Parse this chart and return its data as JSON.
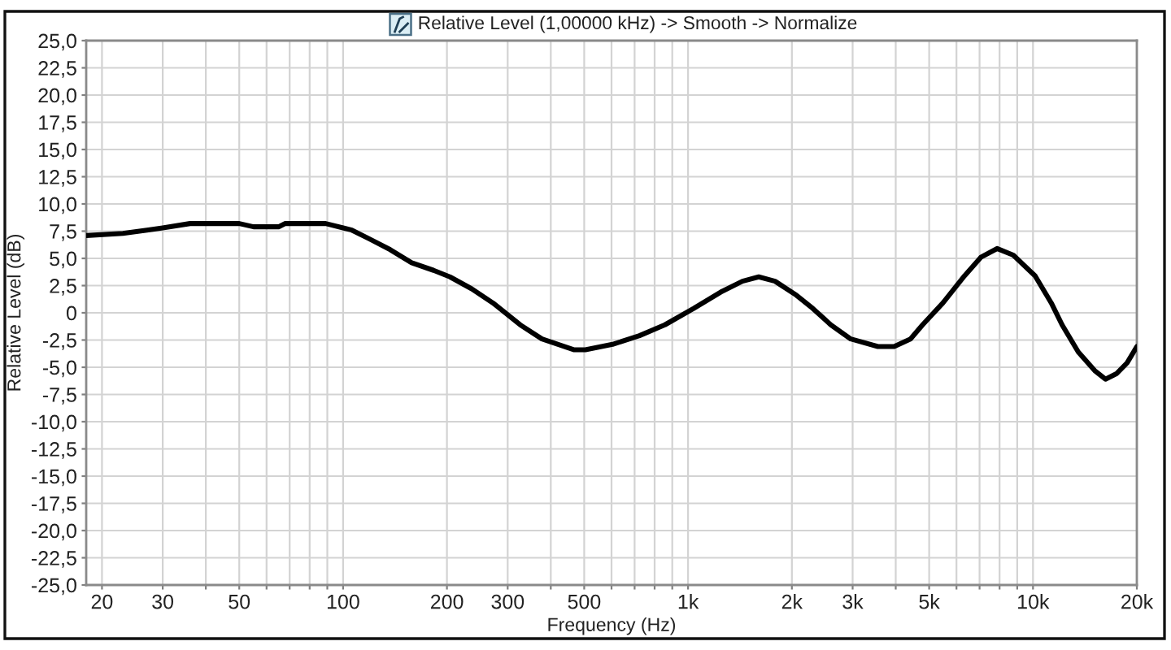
{
  "chart_data": {
    "type": "line",
    "title": "Relative Level (1,00000 kHz) -> Smooth -> Normalize",
    "xlabel": "Frequency (Hz)",
    "ylabel": "Relative Level (dB)",
    "x": [
      18,
      23,
      27,
      30,
      36,
      50,
      55,
      65,
      68,
      89,
      100,
      106,
      119,
      137,
      158,
      183,
      204,
      236,
      272,
      326,
      377,
      468,
      504,
      604,
      723,
      857,
      1038,
      1243,
      1438,
      1603,
      1787,
      2064,
      2300,
      2592,
      2962,
      3551,
      3958,
      4413,
      4786,
      5480,
      6332,
      7058,
      7866,
      8767,
      10140,
      11300,
      12140,
      13530,
      15090,
      16220,
      17440,
      18740,
      20000
    ],
    "series": [
      {
        "color": "#000000",
        "values": [
          7.1,
          7.3,
          7.6,
          7.8,
          8.2,
          8.2,
          7.9,
          7.9,
          8.2,
          8.2,
          7.8,
          7.6,
          6.8,
          5.8,
          4.6,
          3.9,
          3.3,
          2.2,
          0.9,
          -1.1,
          -2.4,
          -3.4,
          -3.4,
          -2.9,
          -2.1,
          -1.1,
          0.4,
          1.9,
          2.9,
          3.3,
          2.9,
          1.6,
          0.4,
          -1.1,
          -2.4,
          -3.1,
          -3.1,
          -2.4,
          -1.1,
          0.9,
          3.4,
          5.1,
          5.9,
          5.3,
          3.4,
          0.9,
          -1.1,
          -3.6,
          -5.3,
          -6.1,
          -5.6,
          -4.6,
          -3.1
        ]
      }
    ],
    "log": "x",
    "xlim": [
      18,
      20000
    ],
    "ylim": [
      -25,
      25
    ],
    "xticks": [
      20,
      30,
      {
        "value": 40,
        "label": null
      },
      50,
      {
        "value": 60,
        "label": null
      },
      {
        "value": 70,
        "label": null
      },
      {
        "value": 80,
        "label": null
      },
      {
        "value": 90,
        "label": null
      },
      100,
      200,
      300,
      {
        "value": 400,
        "label": null
      },
      500,
      {
        "value": 600,
        "label": null
      },
      {
        "value": 700,
        "label": null
      },
      {
        "value": 800,
        "label": null
      },
      {
        "value": 900,
        "label": null
      },
      {
        "value": 1000,
        "label": "1k"
      },
      {
        "value": 2000,
        "label": "2k"
      },
      {
        "value": 3000,
        "label": "3k"
      },
      {
        "value": 4000,
        "label": null
      },
      {
        "value": 5000,
        "label": "5k"
      },
      {
        "value": 6000,
        "label": null
      },
      {
        "value": 7000,
        "label": null
      },
      {
        "value": 8000,
        "label": null
      },
      {
        "value": 9000,
        "label": null
      },
      {
        "value": 10000,
        "label": "10k"
      },
      {
        "value": 20000,
        "label": "20k"
      }
    ],
    "yticks": [
      {
        "value": 25,
        "label": "25,0"
      },
      {
        "value": 22.5,
        "label": "22,5"
      },
      {
        "value": 20,
        "label": "20,0"
      },
      {
        "value": 17.5,
        "label": "17,5"
      },
      {
        "value": 15,
        "label": "15,0"
      },
      {
        "value": 12.5,
        "label": "12,5"
      },
      {
        "value": 10,
        "label": "10,0"
      },
      {
        "value": 7.5,
        "label": "7,5"
      },
      {
        "value": 5,
        "label": "5,0"
      },
      {
        "value": 2.5,
        "label": "2,5"
      },
      0,
      {
        "value": -2.5,
        "label": "-2,5"
      },
      {
        "value": -5,
        "label": "-5,0"
      },
      {
        "value": -7.5,
        "label": "-7,5"
      },
      {
        "value": -10,
        "label": "-10,0"
      },
      {
        "value": -12.5,
        "label": "-12,5"
      },
      {
        "value": -15,
        "label": "-15,0"
      },
      {
        "value": -17.5,
        "label": "-17,5"
      },
      {
        "value": -20,
        "label": "-20,0"
      },
      {
        "value": -22.5,
        "label": "-22,5"
      },
      {
        "value": -25,
        "label": "-25,0"
      }
    ],
    "grid": true,
    "line_style": "solid"
  }
}
